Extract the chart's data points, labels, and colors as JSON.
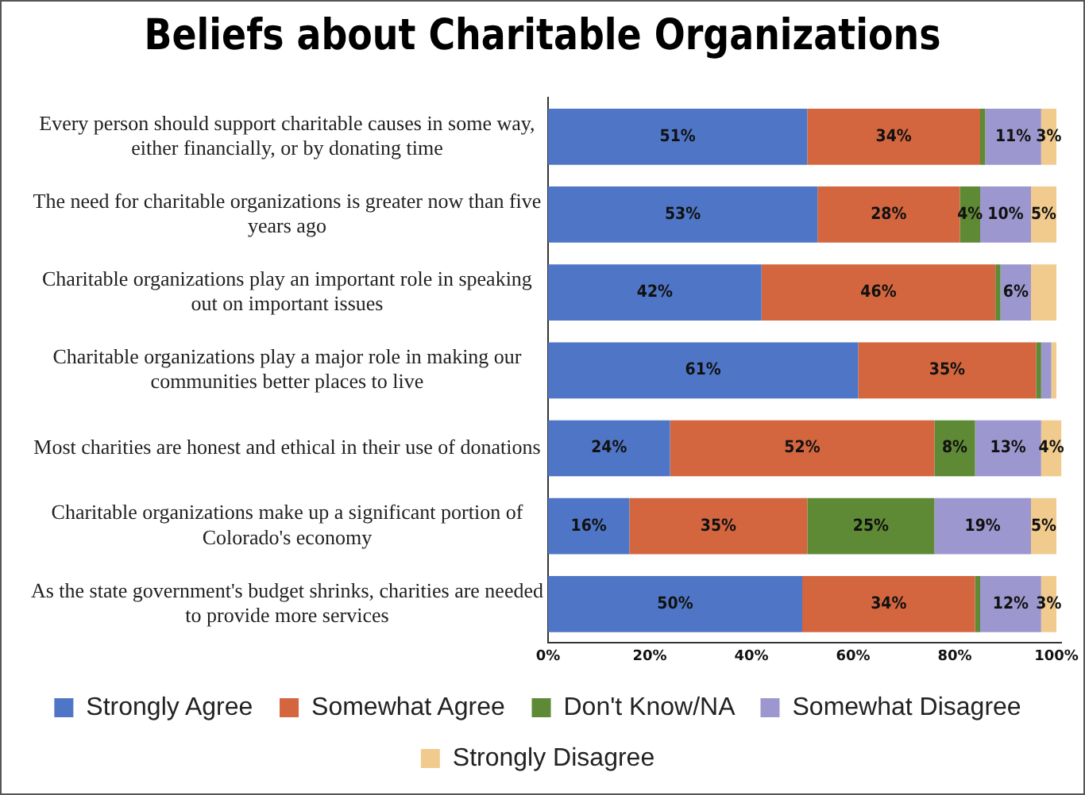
{
  "chart_data": {
    "type": "bar",
    "orientation": "horizontal",
    "stacked": true,
    "title": "Beliefs about Charitable Organizations",
    "categories": [
      "Every person should support charitable causes in some way, either financially, or by donating time",
      "The need for charitable organizations is greater now than five years ago",
      "Charitable organizations play an important role in speaking out on important issues",
      "Charitable organizations play a major role in making our communities better places to live",
      "Most charities are honest and ethical in their use of donations",
      "Charitable organizations make up a significant portion of Colorado's economy",
      "As the state government's budget shrinks, charities are needed to provide more services"
    ],
    "series": [
      {
        "name": "Strongly Agree",
        "color": "#4f76c6",
        "values": [
          51,
          53,
          42,
          61,
          24,
          16,
          50
        ],
        "value_labels": [
          "51%",
          "53%",
          "42%",
          "61%",
          "24%",
          "16%",
          "50%"
        ]
      },
      {
        "name": "Somewhat Agree",
        "color": "#d4663f",
        "values": [
          34,
          28,
          46,
          35,
          52,
          35,
          34
        ],
        "value_labels": [
          "34%",
          "28%",
          "46%",
          "35%",
          "52%",
          "35%",
          "34%"
        ]
      },
      {
        "name": "Don't Know/NA",
        "color": "#5f8a35",
        "values": [
          1,
          4,
          1,
          1,
          8,
          25,
          1
        ],
        "value_labels": [
          null,
          "4%",
          null,
          null,
          "8%",
          "25%",
          null
        ]
      },
      {
        "name": "Somewhat Disagree",
        "color": "#9d97cf",
        "values": [
          11,
          10,
          6,
          2,
          13,
          19,
          12
        ],
        "value_labels": [
          "11%",
          "10%",
          "6%",
          null,
          "13%",
          "19%",
          "12%"
        ]
      },
      {
        "name": "Strongly Disagree",
        "color": "#f1cb8d",
        "values": [
          3,
          5,
          5,
          1,
          4,
          5,
          3
        ],
        "value_labels": [
          "3%",
          "5%",
          null,
          null,
          "4%",
          "5%",
          "3%"
        ]
      }
    ],
    "xlim": [
      0,
      101
    ],
    "xticks": [
      {
        "value": 0,
        "label": "0%"
      },
      {
        "value": 20,
        "label": "20%"
      },
      {
        "value": 40,
        "label": "40%"
      },
      {
        "value": 60,
        "label": "60%"
      },
      {
        "value": 80,
        "label": "80%"
      },
      {
        "value": 100,
        "label": "100%"
      }
    ],
    "grid": false,
    "legend": "bottom"
  }
}
